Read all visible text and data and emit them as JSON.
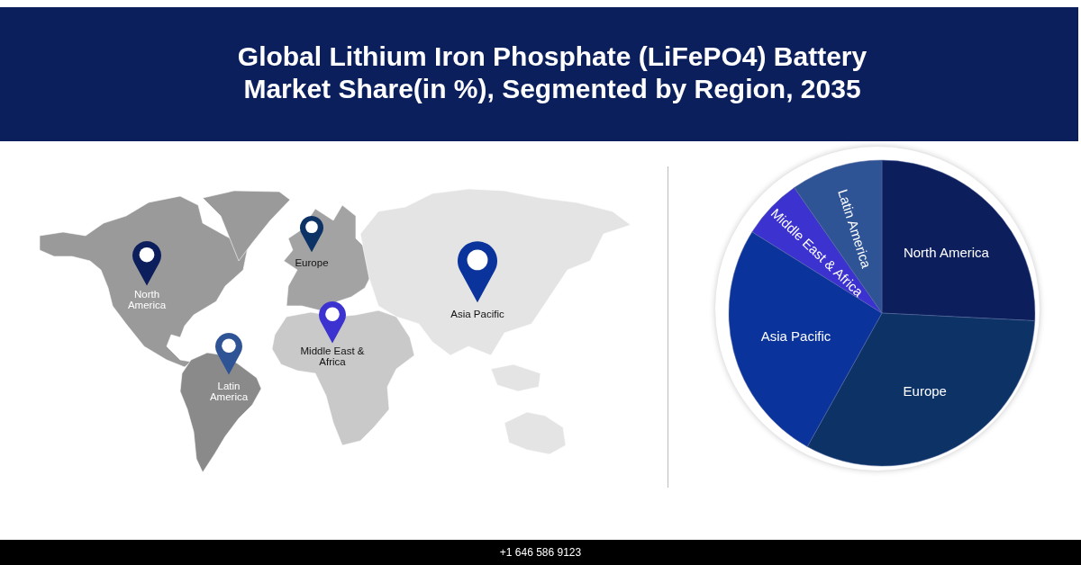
{
  "chart_data": {
    "type": "pie",
    "title": "Global Lithium Iron Phosphate (LiFePO4) Battery Market Share(in %), Segmented by Region, 2035",
    "categories": [
      "North America",
      "Europe",
      "Asia Pacific",
      "Middle East & Africa",
      "Latin America"
    ],
    "values": [
      25.8,
      32.3,
      25.8,
      6.4,
      9.7
    ],
    "colors": [
      "#0c1f5c",
      "#0d3366",
      "#0a339c",
      "#3b32cf",
      "#2f5496"
    ],
    "annotations": [
      "+1 646 586 9123"
    ]
  }
}
